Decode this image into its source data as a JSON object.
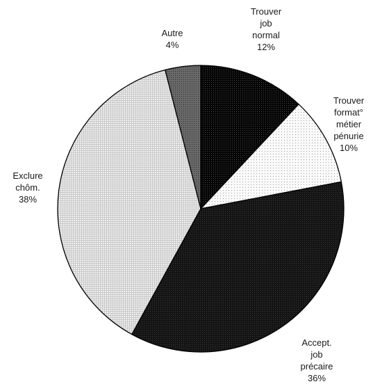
{
  "chart_data": {
    "type": "pie",
    "slices": [
      {
        "label": [
          "Trouver",
          "job",
          "normal"
        ],
        "value": 12,
        "value_label": "12%",
        "color": "#0a0a0a",
        "pattern": "dark-dots"
      },
      {
        "label": [
          "Trouver",
          "format°",
          "métier",
          "pénurie"
        ],
        "value": 10,
        "value_label": "10%",
        "color": "#f4f4f4",
        "pattern": "sparse-dots"
      },
      {
        "label": [
          "Accept.",
          "job",
          "précaire"
        ],
        "value": 36,
        "value_label": "36%",
        "color": "#1b1b1b",
        "pattern": "dense-grid"
      },
      {
        "label": [
          "Exclure",
          "chôm."
        ],
        "value": 38,
        "value_label": "38%",
        "color": "#e2e2e2",
        "pattern": "light-grid"
      },
      {
        "label": [
          "Autre"
        ],
        "value": 4,
        "value_label": "4%",
        "color": "#5a5a5a",
        "pattern": "mid-grid"
      }
    ],
    "start_angle_deg": 0,
    "direction": "clockwise",
    "legend": "none"
  }
}
